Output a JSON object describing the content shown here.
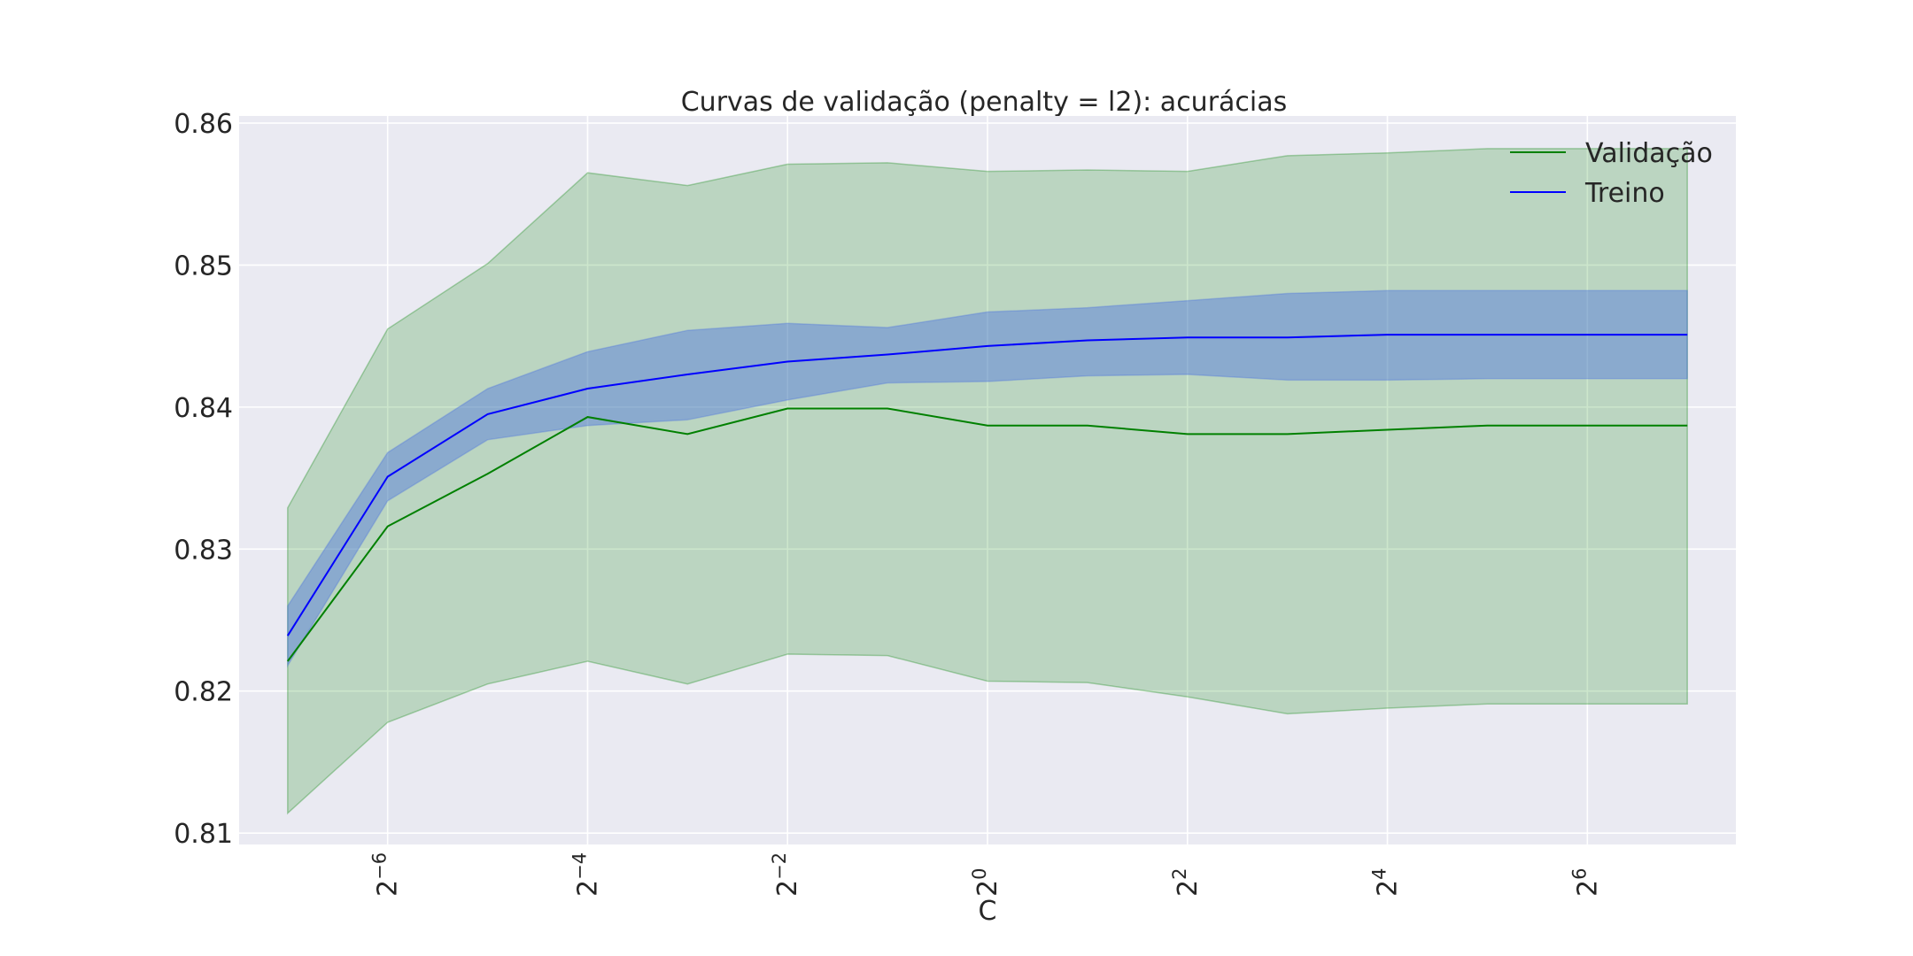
{
  "chart_data": {
    "type": "line",
    "title": "Curvas de validação (penalty = l2): acurácias",
    "xlabel": "C",
    "ylabel": "",
    "x_scale": "log2",
    "x": [
      0.0078125,
      0.015625,
      0.03125,
      0.0625,
      0.125,
      0.25,
      0.5,
      1,
      2,
      4,
      8,
      16,
      32,
      64,
      128
    ],
    "xlim": [
      0.00558,
      179.2
    ],
    "ylim": [
      0.8092,
      0.8605
    ],
    "x_ticks": [
      {
        "value": 0.015625,
        "base": "2",
        "exp": "−6"
      },
      {
        "value": 0.0625,
        "base": "2",
        "exp": "−4"
      },
      {
        "value": 0.25,
        "base": "2",
        "exp": "−2"
      },
      {
        "value": 1,
        "base": "2",
        "exp": "0"
      },
      {
        "value": 4,
        "base": "2",
        "exp": "2"
      },
      {
        "value": 16,
        "base": "2",
        "exp": "4"
      },
      {
        "value": 64,
        "base": "2",
        "exp": "6"
      }
    ],
    "y_ticks": [
      {
        "value": 0.81,
        "label": "0.81"
      },
      {
        "value": 0.82,
        "label": "0.82"
      },
      {
        "value": 0.83,
        "label": "0.83"
      },
      {
        "value": 0.84,
        "label": "0.84"
      },
      {
        "value": 0.85,
        "label": "0.85"
      },
      {
        "value": 0.86,
        "label": "0.86"
      }
    ],
    "grid": true,
    "legend_position": "top-right",
    "series": [
      {
        "name": "Validação",
        "color": "#008000",
        "band_color": "#008000",
        "values": [
          0.8221,
          0.8316,
          0.8353,
          0.8393,
          0.8381,
          0.8399,
          0.8399,
          0.8387,
          0.8387,
          0.8381,
          0.8381,
          0.8384,
          0.8387,
          0.8387,
          0.8387
        ],
        "upper": [
          0.8329,
          0.8455,
          0.8501,
          0.8565,
          0.8556,
          0.8571,
          0.8572,
          0.8566,
          0.8567,
          0.8566,
          0.8577,
          0.8579,
          0.8582,
          0.8582,
          0.8582
        ],
        "lower": [
          0.8114,
          0.8178,
          0.8205,
          0.8221,
          0.8205,
          0.8226,
          0.8225,
          0.8207,
          0.8206,
          0.8196,
          0.8184,
          0.8188,
          0.8191,
          0.8191,
          0.8191
        ]
      },
      {
        "name": "Treino",
        "color": "#0000ff",
        "band_color": "#4169e1",
        "values": [
          0.8239,
          0.8351,
          0.8395,
          0.8413,
          0.8423,
          0.8432,
          0.8437,
          0.8443,
          0.8447,
          0.8449,
          0.8449,
          0.8451,
          0.8451,
          0.8451,
          0.8451
        ],
        "upper": [
          0.826,
          0.8368,
          0.8413,
          0.8439,
          0.8454,
          0.8459,
          0.8456,
          0.8467,
          0.847,
          0.8475,
          0.848,
          0.8482,
          0.8482,
          0.8482,
          0.8482
        ],
        "lower": [
          0.8218,
          0.8334,
          0.8377,
          0.8387,
          0.8391,
          0.8405,
          0.8417,
          0.8418,
          0.8422,
          0.8423,
          0.8419,
          0.8419,
          0.842,
          0.842,
          0.842
        ]
      }
    ]
  }
}
